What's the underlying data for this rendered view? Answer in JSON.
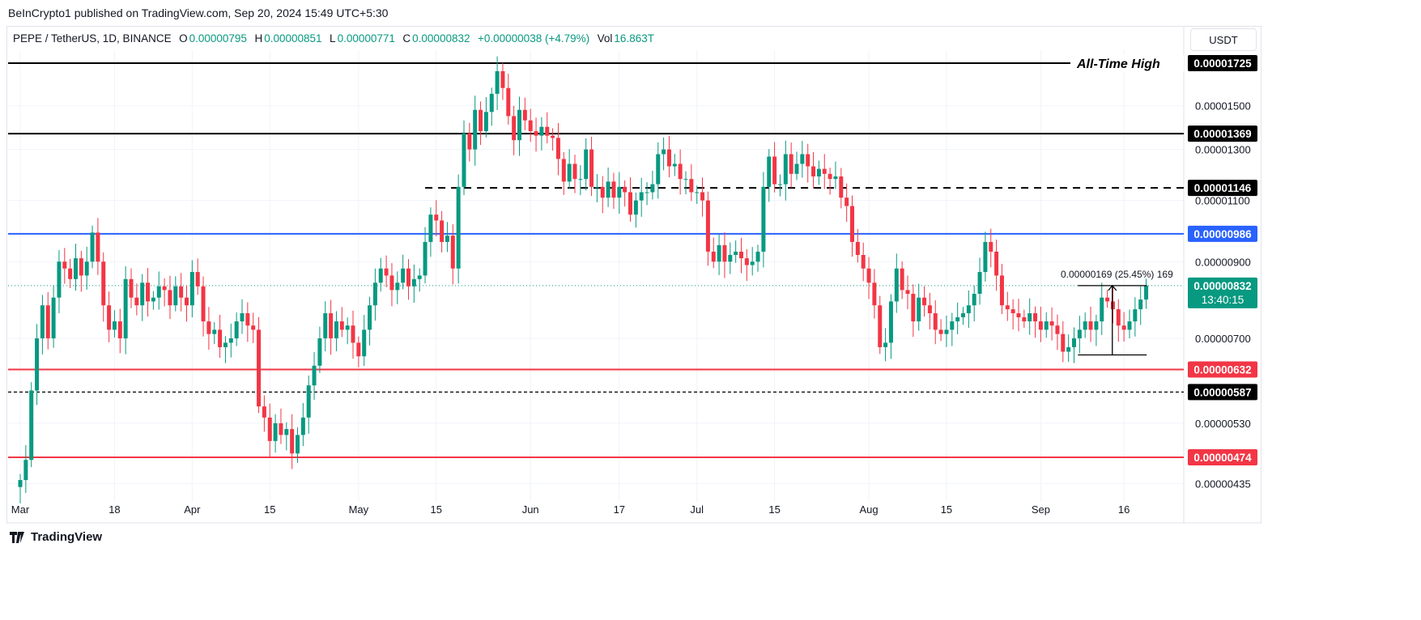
{
  "publisher": "BeInCrypto1 published on TradingView.com, Sep 20, 2024 15:49 UTC+5:30",
  "legend": {
    "symbol": "PEPE / TetherUS, 1D, BINANCE",
    "o_label": "O",
    "o": "0.00000795",
    "h_label": "H",
    "h": "0.00000851",
    "l_label": "L",
    "l": "0.00000771",
    "c_label": "C",
    "c": "0.00000832",
    "change": "+0.00000038 (+4.79%)",
    "vol_label": "Vol",
    "vol": "16.863T"
  },
  "currency": "USDT",
  "footer_brand": "TradingView",
  "colors": {
    "up": "#089981",
    "down": "#f23645",
    "blue": "#2962ff",
    "black": "#000000"
  },
  "chart_data": {
    "type": "candlestick",
    "scale": "log",
    "unit": "1e-8 USDT",
    "ylim": [
      410,
      1760
    ],
    "start_date": "2024-03-01",
    "closes": [
      440,
      470,
      590,
      700,
      780,
      700,
      800,
      900,
      880,
      850,
      910,
      860,
      900,
      990,
      900,
      780,
      720,
      740,
      700,
      850,
      800,
      780,
      840,
      790,
      800,
      830,
      820,
      780,
      830,
      800,
      780,
      870,
      830,
      740,
      710,
      720,
      680,
      690,
      700,
      740,
      760,
      730,
      720,
      560,
      540,
      500,
      530,
      510,
      520,
      480,
      510,
      540,
      600,
      640,
      700,
      760,
      700,
      740,
      720,
      730,
      690,
      660,
      720,
      780,
      840,
      880,
      860,
      820,
      840,
      880,
      830,
      850,
      860,
      960,
      1050,
      1030,
      960,
      980,
      880,
      1150,
      1370,
      1300,
      1480,
      1380,
      1470,
      1560,
      1680,
      1590,
      1450,
      1340,
      1480,
      1430,
      1380,
      1360,
      1400,
      1360,
      1350,
      1260,
      1170,
      1240,
      1180,
      1180,
      1300,
      1150,
      1150,
      1110,
      1170,
      1110,
      1150,
      1130,
      1050,
      1100,
      1130,
      1130,
      1160,
      1280,
      1300,
      1230,
      1240,
      1180,
      1180,
      1130,
      1130,
      1100,
      930,
      900,
      950,
      900,
      920,
      930,
      910,
      890,
      900,
      930,
      1150,
      1270,
      1160,
      1160,
      1280,
      1200,
      1240,
      1280,
      1230,
      1190,
      1220,
      1200,
      1180,
      1190,
      1110,
      1080,
      960,
      920,
      880,
      840,
      780,
      680,
      690,
      790,
      880,
      820,
      810,
      740,
      800,
      780,
      760,
      720,
      710,
      720,
      740,
      750,
      760,
      780,
      810,
      870,
      960,
      930,
      860,
      780,
      770,
      760,
      750,
      740,
      760,
      740,
      720,
      740,
      730,
      710,
      670,
      680,
      700,
      720,
      740,
      720,
      740,
      800,
      790,
      770,
      730,
      720,
      740,
      770,
      795,
      832
    ],
    "first_open": 430,
    "last_candle": {
      "o": 795,
      "h": 851,
      "l": 771,
      "c": 832
    },
    "price_ticks": [
      "0.00001500",
      "0.00001300",
      "0.00001100",
      "0.00000900",
      "0.00000700",
      "0.00000530",
      "0.00000435"
    ],
    "price_tick_values": [
      1500,
      1300,
      1100,
      900,
      700,
      530,
      435
    ],
    "time_ticks": [
      {
        "label": "Mar",
        "day": 0
      },
      {
        "label": "18",
        "day": 17
      },
      {
        "label": "Apr",
        "day": 31
      },
      {
        "label": "15",
        "day": 45
      },
      {
        "label": "May",
        "day": 61
      },
      {
        "label": "15",
        "day": 75
      },
      {
        "label": "Jun",
        "day": 92
      },
      {
        "label": "17",
        "day": 108
      },
      {
        "label": "Jul",
        "day": 122
      },
      {
        "label": "15",
        "day": 136
      },
      {
        "label": "Aug",
        "day": 153
      },
      {
        "label": "15",
        "day": 167
      },
      {
        "label": "Sep",
        "day": 184
      },
      {
        "label": "16",
        "day": 199
      }
    ],
    "levels": [
      {
        "value": 1725,
        "label": "0.00001725",
        "style": "solid",
        "color": "#000000",
        "note": "All-Time High"
      },
      {
        "value": 1369,
        "label": "0.00001369",
        "style": "solid",
        "color": "#000000"
      },
      {
        "value": 1146,
        "label": "0.00001146",
        "style": "dashed",
        "color": "#000000",
        "from_day": 73
      },
      {
        "value": 986,
        "label": "0.00000986",
        "style": "solid",
        "color": "#2962ff"
      },
      {
        "value": 632,
        "label": "0.00000632",
        "style": "solid",
        "color": "#f23645"
      },
      {
        "value": 587,
        "label": "0.00000587",
        "style": "dotted",
        "color": "#000000"
      },
      {
        "value": 474,
        "label": "0.00000474",
        "style": "solid",
        "color": "#f23645"
      }
    ],
    "current_price": {
      "value": 832,
      "label": "0.00000832",
      "countdown": "13:40:15"
    },
    "measure": {
      "from_day": 191,
      "to_day": 204,
      "low": 663,
      "high": 832,
      "label": "0.00000169 (25.45%) 169"
    }
  }
}
